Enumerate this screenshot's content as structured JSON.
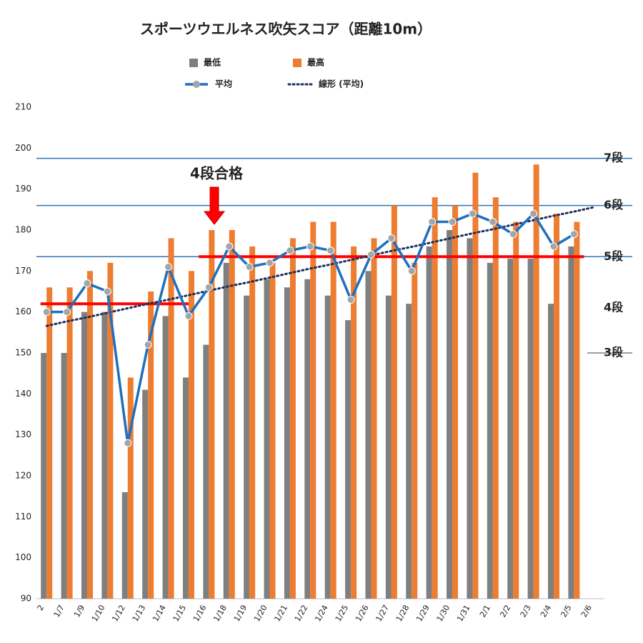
{
  "chart_data": {
    "type": "bar",
    "title": "スポーツウエルネス吹矢スコア（距離10m）",
    "categories": [
      "2",
      "1/7",
      "1/9",
      "1/10",
      "1/12",
      "1/13",
      "1/14",
      "1/15",
      "1/16",
      "1/18",
      "1/19",
      "1/20",
      "1/21",
      "1/22",
      "1/24",
      "1/25",
      "1/26",
      "1/27",
      "1/28",
      "1/29",
      "1/30",
      "1/31",
      "2/1",
      "2/2",
      "2/3",
      "2/4",
      "2/5",
      "2/6"
    ],
    "series": [
      {
        "name": "最低",
        "color": "#7f7f7f",
        "values": [
          150,
          150,
          160,
          160,
          116,
          141,
          159,
          144,
          152,
          172,
          164,
          168,
          166,
          168,
          164,
          158,
          170,
          164,
          162,
          176,
          180,
          178,
          172,
          173,
          173,
          162,
          176,
          null
        ]
      },
      {
        "name": "最高",
        "color": "#ed7d31",
        "values": [
          166,
          166,
          170,
          172,
          144,
          165,
          178,
          170,
          180,
          180,
          176,
          172,
          178,
          182,
          182,
          176,
          178,
          186,
          172,
          188,
          186,
          194,
          188,
          182,
          196,
          184,
          182,
          null
        ]
      },
      {
        "name": "平均",
        "type": "line",
        "color": "#1f6fbf",
        "values": [
          160,
          160,
          167,
          165,
          128,
          152,
          171,
          159,
          166,
          176,
          171,
          172,
          175,
          176,
          175,
          163,
          174,
          178,
          170,
          182,
          182,
          184,
          182,
          179,
          184,
          176,
          179,
          null
        ]
      },
      {
        "name": "線形 (平均)",
        "type": "trend",
        "color": "#1f2d5a",
        "values": [
          156.6,
          157.7,
          158.7,
          159.8,
          160.9,
          162.0,
          163.0,
          164.1,
          165.2,
          166.3,
          167.3,
          168.4,
          169.5,
          170.6,
          171.6,
          172.7,
          173.8,
          174.9,
          175.9,
          177.0,
          178.1,
          179.2,
          180.2,
          181.3,
          182.4,
          183.5,
          184.5,
          185.6
        ]
      }
    ],
    "ylim": [
      90,
      210
    ],
    "yticks": [
      90,
      100,
      110,
      120,
      130,
      140,
      150,
      160,
      170,
      180,
      190,
      200,
      210
    ],
    "levels": [
      {
        "label": "7段",
        "value": 197.5,
        "color": "#2e75b6",
        "text_color": "#000000"
      },
      {
        "label": "6段",
        "value": 186,
        "color": "#2e75b6",
        "text_color": "#000000"
      },
      {
        "label": "5段",
        "value": 173.5,
        "color": "#2e75b6",
        "text_color": "#2e75b6"
      },
      {
        "label": "4段",
        "value": 161,
        "color": null,
        "text_color": "#000000"
      },
      {
        "label": "3段",
        "value": 150,
        "color": "#7f7f7f",
        "text_color": "#000000"
      }
    ],
    "pass_lines": [
      {
        "value": 162,
        "color": "#ff0000"
      },
      {
        "value": 173.5,
        "color": "#ff0000"
      }
    ],
    "annotation": "4段合格"
  }
}
